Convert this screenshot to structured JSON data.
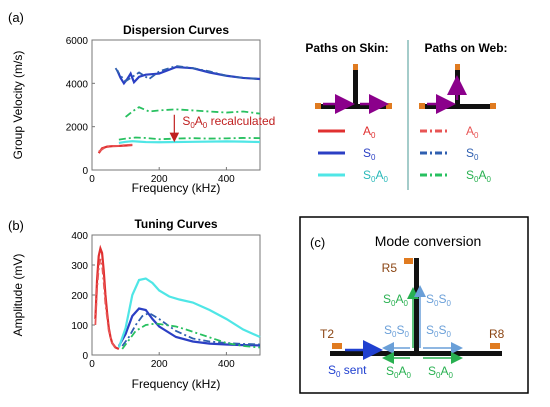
{
  "panels": {
    "a": {
      "label": "(a)"
    },
    "b": {
      "label": "(b)"
    },
    "c": {
      "label": "(c)"
    }
  },
  "colors": {
    "A0": "#e03030",
    "S0": "#2b3fc4",
    "S0A0": "#4fe6e6",
    "dash_A0": "#e85555",
    "dash_S0": "#2f5fb0",
    "dash_S0A0": "#28c060",
    "magenta": "#8b008b",
    "orange": "#e07b20",
    "axis": "#777777"
  },
  "chart_data": [
    {
      "type": "line",
      "title": "Dispersion Curves",
      "xlabel": "Frequency (kHz)",
      "ylabel": "Group Velocity (m/s)",
      "xlim": [
        0,
        500
      ],
      "ylim": [
        0,
        6000
      ],
      "xticks": [
        "0",
        "200",
        "400"
      ],
      "yticks": [
        "0",
        "2000",
        "4000",
        "6000"
      ],
      "grid": false,
      "annotation": {
        "text_main": "S",
        "sub1": "0",
        "mid": "A",
        "sub2": "0",
        "tail": " recalculated",
        "x": 245,
        "y_from": 2550,
        "y_to": 1450
      },
      "series": [
        {
          "name": "A0",
          "group": "skin",
          "style": "solid",
          "x": [
            20,
            30,
            45,
            60,
            80,
            100,
            120
          ],
          "y": [
            780,
            1000,
            1080,
            1100,
            1110,
            1130,
            1150
          ]
        },
        {
          "name": "S0",
          "group": "skin",
          "style": "solid",
          "x": [
            75,
            85,
            95,
            105,
            115,
            125,
            140,
            160,
            200,
            250,
            300,
            350,
            400,
            450,
            500
          ],
          "y": [
            4600,
            4250,
            4000,
            4200,
            4450,
            4050,
            4300,
            4400,
            4450,
            4750,
            4700,
            4500,
            4350,
            4250,
            4200
          ]
        },
        {
          "name": "S0A0",
          "group": "skin",
          "style": "solid",
          "x": [
            80,
            100,
            120,
            140,
            160,
            200,
            300,
            400,
            450,
            500
          ],
          "y": [
            1250,
            1300,
            1330,
            1310,
            1290,
            1280,
            1300,
            1320,
            1310,
            1290
          ]
        },
        {
          "name": "A0",
          "group": "web",
          "style": "dashdot",
          "x": [
            20,
            40,
            60,
            80,
            100,
            120
          ],
          "y": [
            850,
            1050,
            1100,
            1120,
            1150,
            1170
          ]
        },
        {
          "name": "S0",
          "group": "web",
          "style": "dashdot",
          "x": [
            70,
            85,
            100,
            120,
            140,
            170,
            200,
            250,
            300,
            350,
            400,
            450,
            500
          ],
          "y": [
            4700,
            4350,
            4100,
            4300,
            4500,
            4200,
            4550,
            4800,
            4700,
            4550,
            4350,
            4250,
            4200
          ]
        },
        {
          "name": "S0A0",
          "group": "web",
          "style": "dashdot",
          "x": [
            100,
            120,
            140,
            170,
            200,
            250,
            300,
            350,
            400,
            450,
            500
          ],
          "y": [
            2450,
            2700,
            2900,
            2700,
            2750,
            2800,
            2750,
            2700,
            2650,
            2700,
            2600
          ]
        },
        {
          "name": "S0A0",
          "group": "web2",
          "style": "dashdot",
          "x": [
            80,
            100,
            130,
            160,
            200,
            250,
            300,
            350,
            400,
            450,
            500
          ],
          "y": [
            1400,
            1450,
            1500,
            1480,
            1420,
            1450,
            1470,
            1450,
            1460,
            1480,
            1470
          ]
        }
      ]
    },
    {
      "type": "line",
      "title": "Tuning Curves",
      "xlabel": "Frequency (kHz)",
      "ylabel": "Amplitude (mV)",
      "xlim": [
        0,
        500
      ],
      "ylim": [
        0,
        400
      ],
      "xticks": [
        "0",
        "200",
        "400"
      ],
      "yticks": [
        "0",
        "100",
        "200",
        "300",
        "400"
      ],
      "grid": false,
      "series": [
        {
          "name": "A0",
          "group": "skin",
          "style": "solid",
          "x": [
            10,
            15,
            20,
            25,
            30,
            35,
            40,
            45,
            50,
            55,
            60,
            70,
            80
          ],
          "y": [
            120,
            250,
            330,
            355,
            340,
            280,
            200,
            140,
            90,
            60,
            40,
            25,
            20
          ]
        },
        {
          "name": "S0",
          "group": "skin",
          "style": "solid",
          "x": [
            80,
            100,
            120,
            140,
            160,
            180,
            200,
            250,
            300,
            350,
            400,
            450,
            500
          ],
          "y": [
            30,
            70,
            130,
            155,
            150,
            120,
            95,
            60,
            45,
            38,
            35,
            33,
            32
          ]
        },
        {
          "name": "S0A0",
          "group": "skin",
          "style": "solid",
          "x": [
            80,
            100,
            120,
            140,
            160,
            180,
            200,
            230,
            260,
            300,
            350,
            400,
            450,
            500
          ],
          "y": [
            25,
            90,
            200,
            250,
            255,
            240,
            215,
            195,
            185,
            175,
            150,
            120,
            85,
            60
          ]
        },
        {
          "name": "A0",
          "group": "web",
          "style": "dashdot",
          "x": [
            10,
            15,
            20,
            25,
            30,
            35,
            40,
            50,
            60,
            70
          ],
          "y": [
            100,
            220,
            290,
            320,
            300,
            240,
            170,
            80,
            40,
            22
          ]
        },
        {
          "name": "S0",
          "group": "web",
          "style": "dashdot",
          "x": [
            90,
            110,
            130,
            150,
            170,
            200,
            250,
            300,
            350,
            400,
            450,
            500
          ],
          "y": [
            30,
            60,
            100,
            130,
            140,
            120,
            80,
            55,
            45,
            40,
            37,
            35
          ]
        },
        {
          "name": "S0A0",
          "group": "web",
          "style": "dashdot",
          "x": [
            90,
            110,
            130,
            160,
            190,
            220,
            250,
            280,
            320,
            360,
            400,
            450,
            500
          ],
          "y": [
            20,
            50,
            80,
            100,
            105,
            100,
            95,
            85,
            70,
            55,
            40,
            30,
            25
          ]
        }
      ]
    }
  ],
  "legend": {
    "skin_title": "Paths on Skin:",
    "web_title": "Paths on Web:",
    "entries": [
      {
        "key": "A0",
        "main": "A",
        "sub": "0"
      },
      {
        "key": "S0",
        "main": "S",
        "sub": "0"
      },
      {
        "key": "S0A0",
        "main": "S",
        "sub": "0",
        "main2": "A",
        "sub2": "0"
      }
    ]
  },
  "mode_conversion": {
    "title": "Mode conversion",
    "R5": "R5",
    "T2": "T2",
    "R8": "R8",
    "sent": {
      "main": "S",
      "sub": "0",
      "tail": " sent"
    },
    "S0A0": {
      "main": "S",
      "sub": "0",
      "main2": "A",
      "sub2": "0"
    },
    "S0S0": {
      "main": "S",
      "sub": "0",
      "main2": "S",
      "sub2": "0"
    }
  }
}
